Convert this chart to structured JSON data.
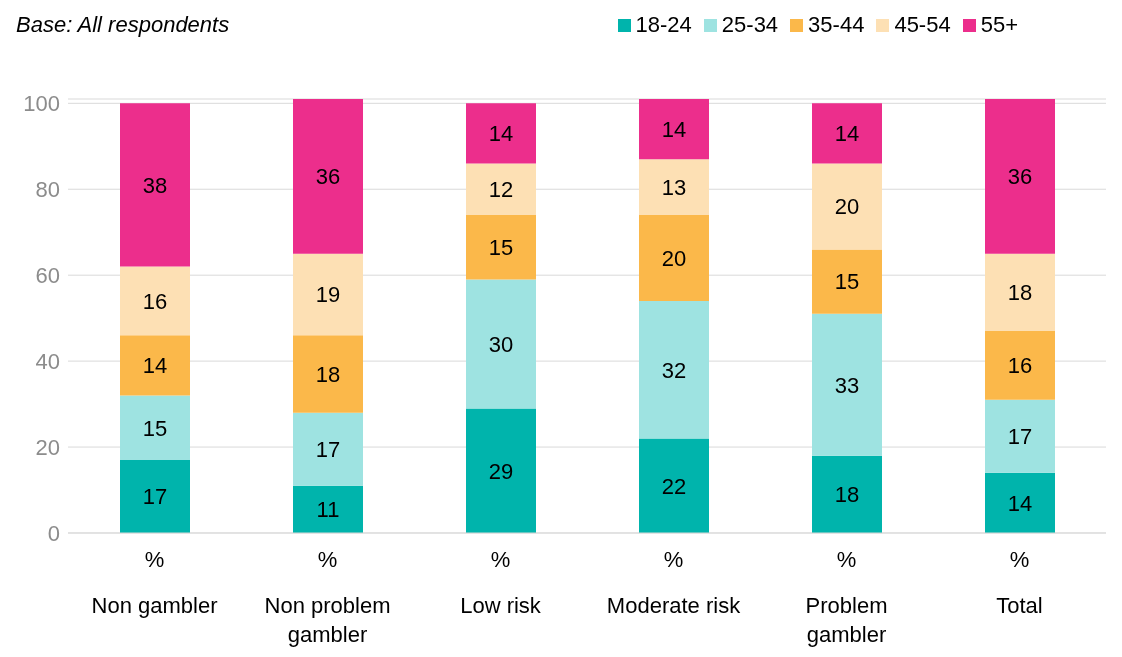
{
  "chart_data": {
    "type": "bar",
    "stacked": true,
    "title": "Base: All respondents",
    "categories": [
      "Non gambler",
      "Non problem gambler",
      "Low risk",
      "Moderate risk",
      "Problem gambler",
      "Total"
    ],
    "series": [
      {
        "name": "18-24",
        "color": "#00b4ac",
        "values": [
          17,
          11,
          29,
          22,
          18,
          14
        ]
      },
      {
        "name": "25-34",
        "color": "#9ee3e1",
        "values": [
          15,
          17,
          30,
          32,
          33,
          17
        ]
      },
      {
        "name": "35-44",
        "color": "#fbb84a",
        "values": [
          14,
          18,
          15,
          20,
          15,
          16
        ]
      },
      {
        "name": "45-54",
        "color": "#fde0b4",
        "values": [
          16,
          19,
          12,
          13,
          20,
          18
        ]
      },
      {
        "name": "55+",
        "color": "#ec2e8c",
        "values": [
          38,
          36,
          14,
          14,
          14,
          36
        ]
      }
    ],
    "annotations": [
      "%",
      "%",
      "%",
      "%",
      "%",
      "%"
    ],
    "ylim": [
      0,
      101
    ],
    "yticks": [
      0,
      20,
      40,
      60,
      80,
      100
    ],
    "grid": "y",
    "legend": "top right",
    "data_labels": true
  }
}
